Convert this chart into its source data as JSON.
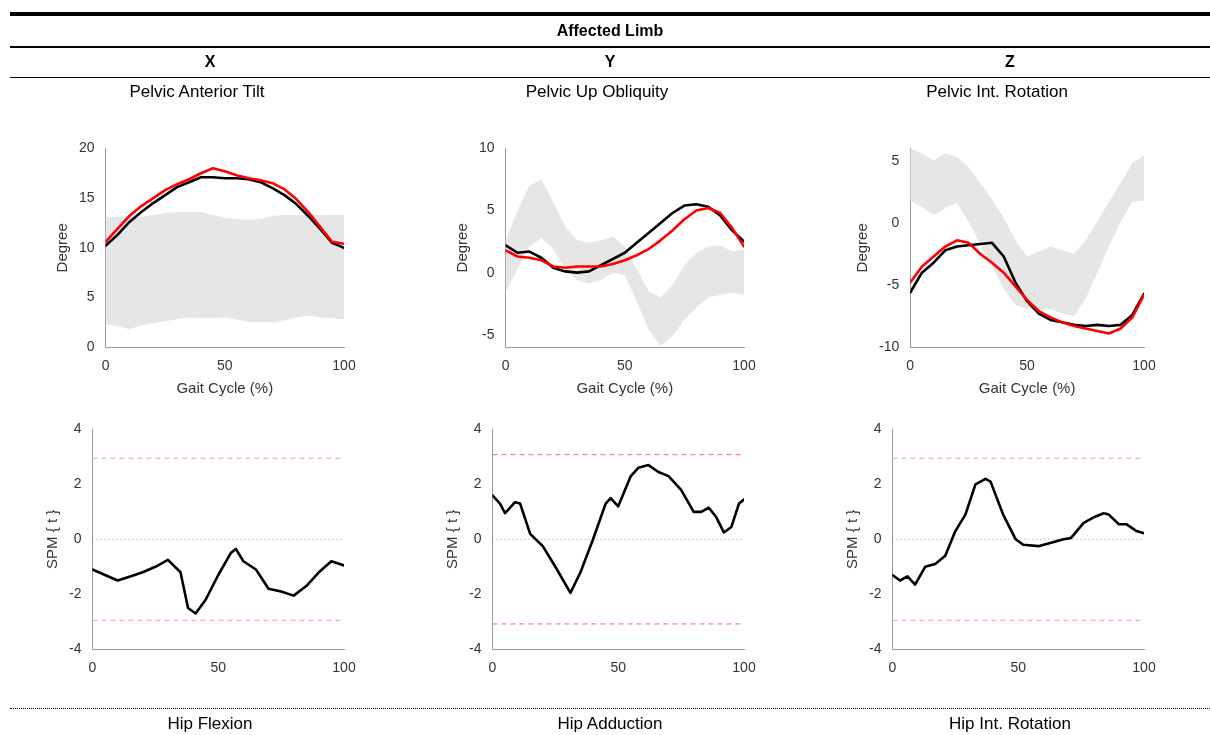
{
  "chart_data": [
    {
      "type": "other",
      "title": "Affected Limb",
      "annotations": [
        "X",
        "Y",
        "Z"
      ]
    },
    {
      "type": "line",
      "title": "Pelvic Anterior Tilt",
      "xlabel": "Gait Cycle (%)",
      "ylabel": "Degree",
      "xlim": [
        0,
        100
      ],
      "xticks": [
        0,
        50,
        100
      ],
      "ylim": [
        0,
        20
      ],
      "yticks": [
        0,
        5,
        10,
        15,
        20
      ],
      "x": [
        0,
        5,
        10,
        15,
        20,
        25,
        30,
        35,
        40,
        45,
        50,
        55,
        60,
        65,
        70,
        75,
        80,
        85,
        90,
        95,
        100
      ],
      "series": [
        {
          "type": "area",
          "color": "#e6e6e6",
          "values": [
            null,
            null,
            null,
            null,
            null,
            null,
            null,
            null,
            null,
            null,
            null,
            null,
            null,
            null,
            null,
            null,
            null,
            null,
            null,
            null,
            null
          ],
          "lower": [
            2.3,
            2.1,
            1.8,
            2.2,
            2.4,
            2.6,
            2.8,
            3.0,
            2.9,
            2.9,
            3.0,
            2.8,
            2.5,
            2.5,
            2.5,
            2.7,
            3.0,
            3.2,
            3.0,
            2.9,
            2.8
          ],
          "upper": [
            13.1,
            13.1,
            13.0,
            13.1,
            13.3,
            13.5,
            13.6,
            13.6,
            13.6,
            13.3,
            13.0,
            12.9,
            12.8,
            12.9,
            13.2,
            13.3,
            13.3,
            13.3,
            13.3,
            13.3,
            13.3
          ]
        },
        {
          "color": "#000000",
          "values": [
            10.2,
            11.3,
            12.6,
            13.6,
            14.5,
            15.3,
            16.1,
            16.6,
            17.1,
            17.1,
            17.0,
            17.0,
            16.9,
            16.6,
            16.0,
            15.3,
            14.4,
            13.2,
            11.9,
            10.5,
            10.0
          ]
        },
        {
          "color": "#ff0000",
          "values": [
            10.6,
            11.9,
            13.2,
            14.2,
            15.0,
            15.8,
            16.4,
            16.9,
            17.5,
            18.0,
            17.7,
            17.3,
            17.0,
            16.8,
            16.5,
            15.9,
            14.9,
            13.6,
            12.1,
            10.6,
            10.4
          ]
        }
      ]
    },
    {
      "type": "line",
      "title": "Pelvic Up Obliquity",
      "xlabel": "Gait Cycle (%)",
      "ylabel": "Degree",
      "xlim": [
        0,
        100
      ],
      "xticks": [
        0,
        50,
        100
      ],
      "ylim": [
        -6,
        10
      ],
      "yticks": [
        -5,
        0,
        5,
        10
      ],
      "x": [
        0,
        5,
        10,
        15,
        20,
        25,
        30,
        35,
        40,
        45,
        50,
        55,
        60,
        65,
        70,
        75,
        80,
        85,
        90,
        95,
        100
      ],
      "series": [
        {
          "type": "area",
          "color": "#e6e6e6",
          "values": [
            null,
            null,
            null,
            null,
            null,
            null,
            null,
            null,
            null,
            null,
            null,
            null,
            null,
            null,
            null,
            null,
            null,
            null,
            null,
            null,
            null
          ],
          "lower": [
            -1.6,
            0.3,
            2.1,
            2.8,
            1.9,
            0.3,
            -0.6,
            -0.9,
            -0.6,
            0.0,
            -0.2,
            -2.3,
            -4.6,
            -5.9,
            -5.1,
            -3.8,
            -2.8,
            -2.0,
            -1.8,
            -1.6,
            -1.8
          ],
          "upper": [
            2.6,
            5.0,
            7.0,
            7.5,
            5.7,
            3.7,
            2.6,
            2.4,
            2.6,
            2.9,
            2.1,
            0.3,
            -1.5,
            -2.0,
            -1.0,
            0.6,
            1.6,
            2.1,
            2.2,
            1.7,
            1.9
          ]
        },
        {
          "color": "#000000",
          "values": [
            2.2,
            1.6,
            1.7,
            1.2,
            0.4,
            0.1,
            0.0,
            0.1,
            0.6,
            1.1,
            1.6,
            2.4,
            3.2,
            4.0,
            4.8,
            5.4,
            5.5,
            5.3,
            4.6,
            3.4,
            2.5
          ]
        },
        {
          "color": "#ff0000",
          "values": [
            1.8,
            1.3,
            1.2,
            1.0,
            0.5,
            0.4,
            0.5,
            0.5,
            0.5,
            0.7,
            1.0,
            1.4,
            1.9,
            2.6,
            3.4,
            4.3,
            5.0,
            5.2,
            4.8,
            3.6,
            2.1
          ]
        }
      ]
    },
    {
      "type": "line",
      "title": "Pelvic Int. Rotation",
      "xlabel": "Gait Cycle (%)",
      "ylabel": "Degree",
      "xlim": [
        0,
        100
      ],
      "xticks": [
        0,
        50,
        100
      ],
      "ylim": [
        -10,
        6
      ],
      "yticks": [
        -10,
        -5,
        0,
        5
      ],
      "x": [
        0,
        5,
        10,
        15,
        20,
        25,
        30,
        35,
        40,
        45,
        50,
        55,
        60,
        65,
        70,
        75,
        80,
        85,
        90,
        95,
        100
      ],
      "series": [
        {
          "type": "area",
          "color": "#e6e6e6",
          "values": [
            null,
            null,
            null,
            null,
            null,
            null,
            null,
            null,
            null,
            null,
            null,
            null,
            null,
            null,
            null,
            null,
            null,
            null,
            null,
            null,
            null
          ],
          "lower": [
            1.8,
            1.3,
            0.6,
            1.2,
            1.6,
            0.1,
            -1.7,
            -3.5,
            -5.3,
            -6.6,
            -6.9,
            -7.0,
            -6.9,
            -7.3,
            -7.5,
            -6.1,
            -4.0,
            -1.9,
            0.1,
            1.7,
            1.8
          ],
          "upper": [
            6.0,
            5.6,
            5.0,
            5.6,
            5.3,
            4.5,
            3.2,
            1.9,
            0.4,
            -1.4,
            -2.7,
            -2.3,
            -1.9,
            -2.2,
            -2.5,
            -1.4,
            0.1,
            1.7,
            3.2,
            4.8,
            5.4
          ]
        },
        {
          "color": "#000000",
          "values": [
            -5.6,
            -4.0,
            -3.2,
            -2.2,
            -1.9,
            -1.8,
            -1.7,
            -1.6,
            -2.7,
            -4.8,
            -6.3,
            -7.3,
            -7.8,
            -8.0,
            -8.2,
            -8.3,
            -8.2,
            -8.3,
            -8.2,
            -7.4,
            -5.7
          ]
        },
        {
          "color": "#ff0000",
          "values": [
            -4.8,
            -3.5,
            -2.7,
            -1.9,
            -1.4,
            -1.6,
            -2.5,
            -3.2,
            -4.0,
            -5.1,
            -6.2,
            -7.1,
            -7.6,
            -8.0,
            -8.3,
            -8.5,
            -8.7,
            -8.9,
            -8.5,
            -7.6,
            -5.8
          ]
        }
      ]
    },
    {
      "type": "line",
      "ylabel": "SPM { t }",
      "xlim": [
        0,
        100
      ],
      "xticks": [
        0,
        50,
        100
      ],
      "ylim": [
        -4,
        4
      ],
      "yticks": [
        -4,
        -2,
        0,
        2,
        4
      ],
      "ref_lines": [
        {
          "axis": "y",
          "value": 2.95,
          "color": "#ff9999",
          "line_style": "dashed"
        },
        {
          "axis": "y",
          "value": 0,
          "color": "#999999",
          "line_style": "dotted"
        },
        {
          "axis": "y",
          "value": -2.95,
          "color": "#ff9999",
          "line_style": "dashed"
        }
      ],
      "series": [
        {
          "color": "#000000",
          "x": [
            0,
            5,
            10,
            15,
            20,
            25,
            30,
            35,
            38,
            41,
            45,
            50,
            55,
            57,
            60,
            65,
            70,
            75,
            80,
            85,
            90,
            95,
            100
          ],
          "values": [
            -1.1,
            -1.3,
            -1.5,
            -1.35,
            -1.2,
            -1.0,
            -0.75,
            -1.2,
            -2.5,
            -2.7,
            -2.2,
            -1.3,
            -0.5,
            -0.35,
            -0.8,
            -1.1,
            -1.8,
            -1.9,
            -2.05,
            -1.7,
            -1.2,
            -0.8,
            -0.95
          ]
        }
      ]
    },
    {
      "type": "line",
      "ylabel": "SPM { t }",
      "xlim": [
        0,
        100
      ],
      "xticks": [
        0,
        50,
        100
      ],
      "ylim": [
        -4,
        4
      ],
      "yticks": [
        -4,
        -2,
        0,
        2,
        4
      ],
      "ref_lines": [
        {
          "axis": "y",
          "value": 3.08,
          "color": "#ff6666",
          "line_style": "dashed"
        },
        {
          "axis": "y",
          "value": 0,
          "color": "#999999",
          "line_style": "dotted"
        },
        {
          "axis": "y",
          "value": -3.08,
          "color": "#ff6666",
          "line_style": "dashed"
        }
      ],
      "series": [
        {
          "color": "#000000",
          "x": [
            0,
            3,
            5,
            9,
            11,
            15,
            20,
            25,
            31,
            35,
            40,
            45,
            47,
            50,
            55,
            58,
            62,
            66,
            70,
            75,
            80,
            83,
            86,
            89,
            92,
            95,
            98,
            100
          ],
          "values": [
            1.6,
            1.3,
            0.95,
            1.35,
            1.3,
            0.2,
            -0.25,
            -1.0,
            -1.95,
            -1.2,
            0.0,
            1.3,
            1.5,
            1.2,
            2.3,
            2.6,
            2.7,
            2.45,
            2.3,
            1.8,
            1.0,
            1.0,
            1.15,
            0.8,
            0.25,
            0.45,
            1.3,
            1.45
          ]
        }
      ]
    },
    {
      "type": "line",
      "ylabel": "SPM { t }",
      "xlim": [
        0,
        100
      ],
      "xticks": [
        0,
        50,
        100
      ],
      "ylim": [
        -4,
        4
      ],
      "yticks": [
        -4,
        -2,
        0,
        2,
        4
      ],
      "ref_lines": [
        {
          "axis": "y",
          "value": 2.95,
          "color": "#ff9999",
          "line_style": "dashed"
        },
        {
          "axis": "y",
          "value": 0,
          "color": "#999999",
          "line_style": "dotted"
        },
        {
          "axis": "y",
          "value": -2.95,
          "color": "#ff9999",
          "line_style": "dashed"
        }
      ],
      "series": [
        {
          "color": "#000000",
          "x": [
            0,
            3,
            6,
            9,
            13,
            17,
            21,
            25,
            29,
            33,
            37,
            39,
            44,
            49,
            52,
            58,
            62,
            68,
            71,
            76,
            80,
            84,
            86,
            90,
            93,
            97,
            100
          ],
          "values": [
            -1.3,
            -1.5,
            -1.35,
            -1.65,
            -1.0,
            -0.9,
            -0.6,
            0.3,
            0.9,
            2.0,
            2.2,
            2.1,
            0.9,
            0.0,
            -0.2,
            -0.25,
            -0.15,
            0.0,
            0.05,
            0.6,
            0.8,
            0.95,
            0.9,
            0.55,
            0.55,
            0.3,
            0.22
          ]
        }
      ]
    },
    {
      "type": "other",
      "annotations": [
        "Hip Flexion",
        "Hip Adduction",
        "Hip Int. Rotation"
      ]
    }
  ]
}
